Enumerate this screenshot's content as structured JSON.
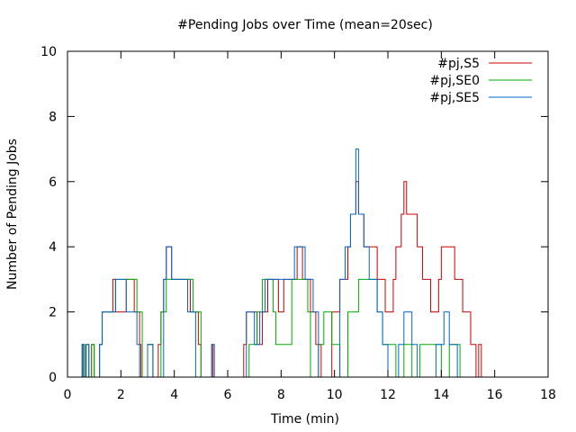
{
  "chart_data": {
    "type": "line",
    "title": "#Pending Jobs over Time (mean=20sec)",
    "xlabel": "Time (min)",
    "ylabel": "Number of Pending Jobs",
    "xlim": [
      0,
      18
    ],
    "ylim": [
      0,
      10
    ],
    "xticks": [
      0,
      2,
      4,
      6,
      8,
      10,
      12,
      14,
      16,
      18
    ],
    "yticks": [
      0,
      2,
      4,
      6,
      8,
      10
    ],
    "grid": false,
    "legend_position": "top-right",
    "series": [
      {
        "name": "#pj,S5",
        "color": "#cc0000",
        "points": [
          [
            0,
            0
          ],
          [
            0.55,
            0
          ],
          [
            0.55,
            1
          ],
          [
            0.6,
            0
          ],
          [
            0.7,
            1
          ],
          [
            0.8,
            0
          ],
          [
            0.9,
            1
          ],
          [
            1.0,
            0
          ],
          [
            1.2,
            1
          ],
          [
            1.3,
            2
          ],
          [
            1.7,
            3
          ],
          [
            1.8,
            2
          ],
          [
            2.2,
            3
          ],
          [
            2.5,
            2
          ],
          [
            2.7,
            1
          ],
          [
            2.75,
            0
          ],
          [
            3.0,
            1
          ],
          [
            3.2,
            0
          ],
          [
            3.4,
            1
          ],
          [
            3.5,
            2
          ],
          [
            3.6,
            3
          ],
          [
            3.7,
            4
          ],
          [
            3.9,
            3
          ],
          [
            4.6,
            2
          ],
          [
            4.9,
            1
          ],
          [
            5.0,
            0
          ],
          [
            5.4,
            1
          ],
          [
            5.45,
            0
          ],
          [
            6.6,
            1
          ],
          [
            6.7,
            2
          ],
          [
            7.1,
            1
          ],
          [
            7.3,
            2
          ],
          [
            7.5,
            3
          ],
          [
            7.9,
            2
          ],
          [
            8.1,
            3
          ],
          [
            8.6,
            4
          ],
          [
            8.8,
            3
          ],
          [
            9.1,
            2
          ],
          [
            9.3,
            1
          ],
          [
            9.5,
            0
          ],
          [
            9.9,
            2
          ],
          [
            10.2,
            3
          ],
          [
            10.5,
            4
          ],
          [
            10.6,
            5
          ],
          [
            10.8,
            6
          ],
          [
            10.9,
            5
          ],
          [
            11.1,
            4
          ],
          [
            11.6,
            3
          ],
          [
            11.9,
            2
          ],
          [
            12.2,
            3
          ],
          [
            12.3,
            4
          ],
          [
            12.5,
            5
          ],
          [
            12.6,
            6
          ],
          [
            12.7,
            5
          ],
          [
            13.1,
            4
          ],
          [
            13.3,
            3
          ],
          [
            13.6,
            2
          ],
          [
            13.9,
            3
          ],
          [
            14.0,
            4
          ],
          [
            14.5,
            3
          ],
          [
            14.8,
            2
          ],
          [
            15.1,
            1
          ],
          [
            15.3,
            0
          ],
          [
            15.4,
            1
          ],
          [
            15.5,
            0
          ],
          [
            16.0,
            0
          ]
        ]
      },
      {
        "name": "#pj,SE0",
        "color": "#00aa00",
        "points": [
          [
            0,
            0
          ],
          [
            0.55,
            0
          ],
          [
            0.55,
            1
          ],
          [
            0.65,
            0
          ],
          [
            0.9,
            1
          ],
          [
            1.0,
            0
          ],
          [
            1.2,
            1
          ],
          [
            1.3,
            2
          ],
          [
            1.8,
            3
          ],
          [
            2.6,
            2
          ],
          [
            2.8,
            0
          ],
          [
            3.0,
            1
          ],
          [
            3.2,
            0
          ],
          [
            3.5,
            2
          ],
          [
            3.7,
            3
          ],
          [
            4.7,
            2
          ],
          [
            5.0,
            0
          ],
          [
            6.8,
            1
          ],
          [
            7.1,
            2
          ],
          [
            7.3,
            3
          ],
          [
            7.7,
            2
          ],
          [
            7.8,
            1
          ],
          [
            8.4,
            3
          ],
          [
            9.0,
            2
          ],
          [
            9.1,
            0
          ],
          [
            9.4,
            1
          ],
          [
            9.6,
            2
          ],
          [
            9.9,
            1
          ],
          [
            10.2,
            0
          ],
          [
            10.5,
            2
          ],
          [
            10.9,
            3
          ],
          [
            11.6,
            2
          ],
          [
            11.8,
            1
          ],
          [
            12.3,
            0
          ],
          [
            12.6,
            1
          ],
          [
            12.9,
            0
          ],
          [
            13.2,
            1
          ],
          [
            14.0,
            0
          ],
          [
            14.3,
            1
          ],
          [
            14.7,
            0
          ],
          [
            15.5,
            0
          ]
        ]
      },
      {
        "name": "#pj,SE5",
        "color": "#0066cc",
        "points": [
          [
            0,
            0
          ],
          [
            0.55,
            0
          ],
          [
            0.55,
            1
          ],
          [
            0.6,
            0
          ],
          [
            0.7,
            1
          ],
          [
            0.8,
            0
          ],
          [
            1.2,
            1
          ],
          [
            1.3,
            2
          ],
          [
            1.8,
            3
          ],
          [
            2.2,
            2
          ],
          [
            2.6,
            1
          ],
          [
            2.7,
            0
          ],
          [
            3.0,
            1
          ],
          [
            3.2,
            0
          ],
          [
            3.6,
            3
          ],
          [
            3.7,
            4
          ],
          [
            3.9,
            3
          ],
          [
            4.5,
            2
          ],
          [
            4.8,
            0
          ],
          [
            5.4,
            1
          ],
          [
            5.5,
            0
          ],
          [
            6.7,
            2
          ],
          [
            7.0,
            1
          ],
          [
            7.2,
            2
          ],
          [
            7.4,
            3
          ],
          [
            8.5,
            4
          ],
          [
            8.9,
            3
          ],
          [
            9.2,
            2
          ],
          [
            9.4,
            0
          ],
          [
            10.2,
            3
          ],
          [
            10.4,
            4
          ],
          [
            10.6,
            5
          ],
          [
            10.8,
            7
          ],
          [
            10.9,
            5
          ],
          [
            11.1,
            4
          ],
          [
            11.3,
            3
          ],
          [
            11.6,
            2
          ],
          [
            11.8,
            1
          ],
          [
            12.0,
            0
          ],
          [
            12.4,
            1
          ],
          [
            12.6,
            2
          ],
          [
            12.9,
            1
          ],
          [
            13.1,
            0
          ],
          [
            13.8,
            1
          ],
          [
            14.1,
            2
          ],
          [
            14.3,
            1
          ],
          [
            14.6,
            0
          ],
          [
            15.5,
            0
          ]
        ]
      }
    ]
  }
}
